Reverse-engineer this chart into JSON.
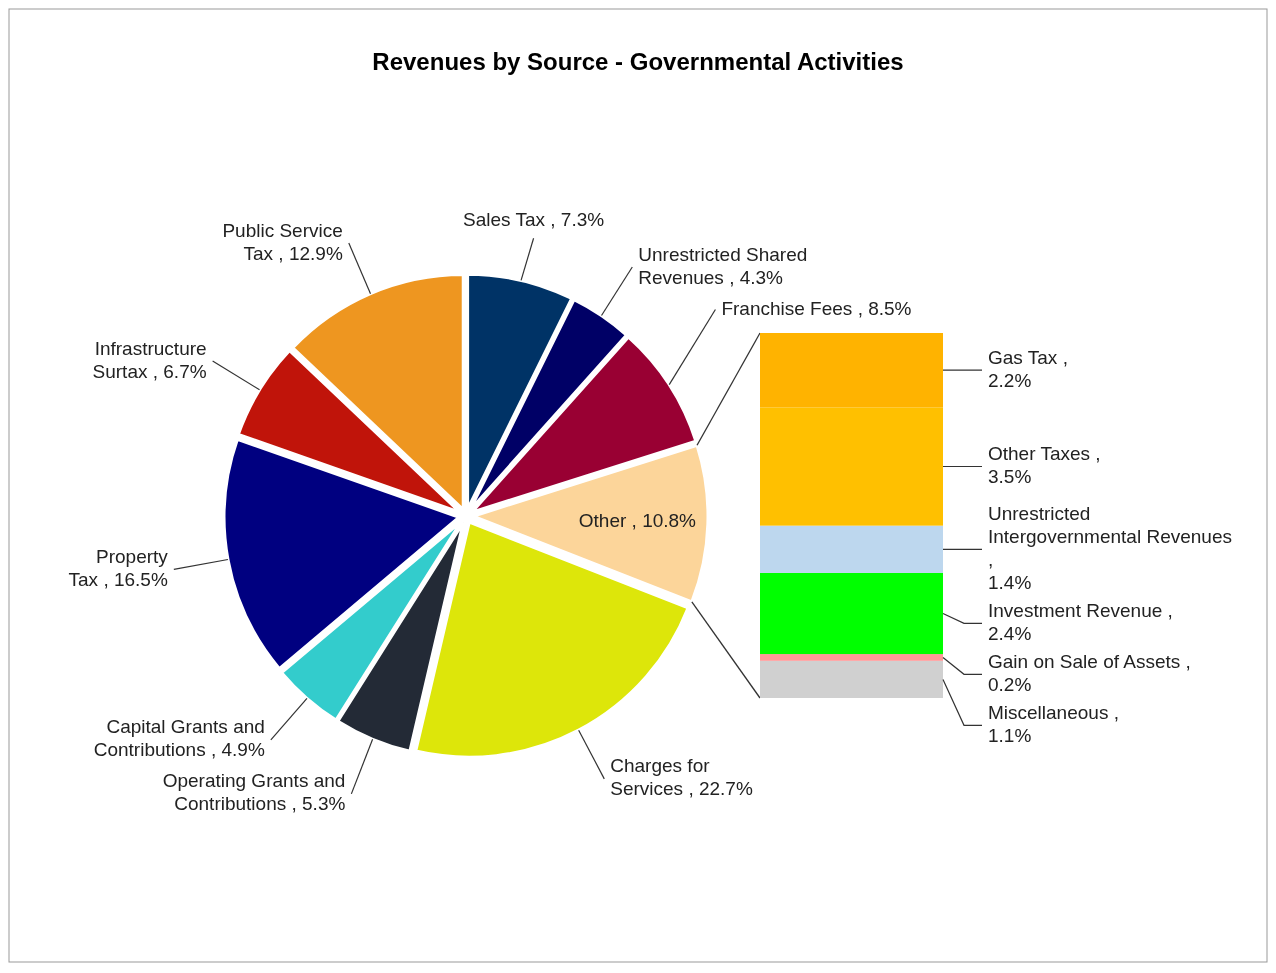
{
  "chart_data": [
    {
      "type": "pie",
      "title": "Revenues by Source - Governmental Activities",
      "categories": [
        "Sales Tax",
        "Unrestricted Shared Revenues",
        "Franchise Fees",
        "Other",
        "Charges for Services",
        "Operating Grants and Contributions",
        "Capital Grants and Contributions",
        "Property Tax",
        "Infrastructure Surtax",
        "Public Service Tax"
      ],
      "values": [
        7.3,
        4.3,
        8.5,
        10.8,
        22.7,
        5.3,
        4.9,
        16.5,
        6.7,
        12.9
      ],
      "value_labels": [
        "7.3%",
        "4.3%",
        "8.5%",
        "10.8%",
        "22.7%",
        "5.3%",
        "4.9%",
        "16.5%",
        "6.7%",
        "12.9%"
      ],
      "colors": [
        "#003366",
        "#000066",
        "#990033",
        "#fcd59a",
        "#dde60a",
        "#232a36",
        "#33cccc",
        "#000080",
        "#c0140a",
        "#ee9620"
      ]
    },
    {
      "type": "bar",
      "stacked": true,
      "categories": [
        null
      ],
      "series": [
        {
          "name": "Miscellaneous ,",
          "color": "#d0d0d0",
          "values": [
            1.1
          ],
          "value_labels": [
            "1.1%"
          ]
        },
        {
          "name": "Gain on Sale of Assets ,",
          "color": "#ff9999",
          "values": [
            0.2
          ],
          "value_labels": [
            "0.2%"
          ]
        },
        {
          "name": "Investment Revenue ,",
          "color": "#00ff00",
          "values": [
            2.4
          ],
          "value_labels": [
            "2.4%"
          ]
        },
        {
          "name": "Unrestricted Intergovernmental Revenues ,",
          "color": "#bdd7ee",
          "values": [
            1.4
          ],
          "value_labels": [
            "1.4%"
          ]
        },
        {
          "name": "Other Taxes ,",
          "color": "#ffc000",
          "values": [
            3.5
          ],
          "value_labels": [
            "3.5%"
          ]
        },
        {
          "name": "Gas Tax ,",
          "color": "#ffb300",
          "values": [
            2.2
          ],
          "value_labels": [
            "2.2%"
          ]
        }
      ]
    }
  ]
}
